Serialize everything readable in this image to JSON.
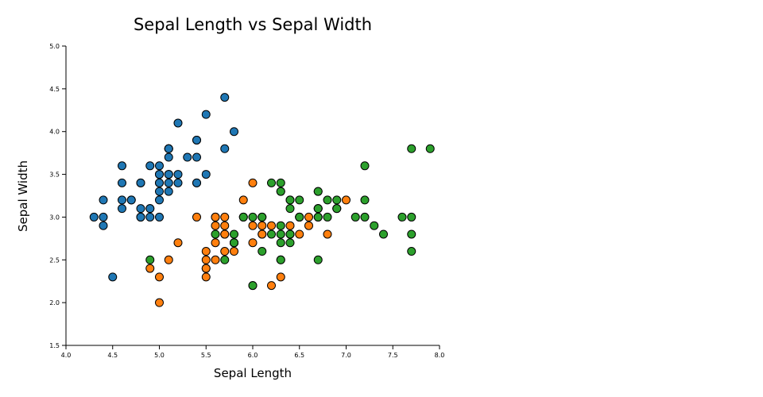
{
  "chart_data": {
    "type": "scatter",
    "title": "Sepal Length vs Sepal Width",
    "xlabel": "Sepal Length",
    "ylabel": "Sepal Width",
    "xlim": [
      4.0,
      8.0
    ],
    "ylim": [
      1.5,
      5.0
    ],
    "xticks": [
      "4.0",
      "4.5",
      "5.0",
      "5.5",
      "6.0",
      "6.5",
      "7.0",
      "7.5",
      "8.0"
    ],
    "yticks": [
      "1.5",
      "2.0",
      "2.5",
      "3.0",
      "3.5",
      "4.0",
      "4.5",
      "5.0"
    ],
    "grid": false,
    "legend": "none",
    "marker_stroke": "#000000",
    "series": [
      {
        "color": "#1f77b4",
        "points": [
          [
            5.1,
            3.5
          ],
          [
            4.9,
            3.0
          ],
          [
            4.7,
            3.2
          ],
          [
            4.6,
            3.1
          ],
          [
            5.0,
            3.6
          ],
          [
            5.4,
            3.9
          ],
          [
            4.6,
            3.4
          ],
          [
            5.0,
            3.4
          ],
          [
            4.4,
            2.9
          ],
          [
            4.9,
            3.1
          ],
          [
            5.4,
            3.7
          ],
          [
            4.8,
            3.4
          ],
          [
            4.8,
            3.0
          ],
          [
            4.3,
            3.0
          ],
          [
            5.8,
            4.0
          ],
          [
            5.7,
            4.4
          ],
          [
            5.4,
            3.9
          ],
          [
            5.1,
            3.5
          ],
          [
            5.7,
            3.8
          ],
          [
            5.1,
            3.8
          ],
          [
            5.4,
            3.4
          ],
          [
            5.1,
            3.7
          ],
          [
            4.6,
            3.6
          ],
          [
            5.1,
            3.3
          ],
          [
            4.8,
            3.4
          ],
          [
            5.0,
            3.0
          ],
          [
            5.0,
            3.4
          ],
          [
            5.2,
            3.5
          ],
          [
            5.2,
            3.4
          ],
          [
            4.7,
            3.2
          ],
          [
            4.8,
            3.1
          ],
          [
            5.4,
            3.4
          ],
          [
            5.2,
            4.1
          ],
          [
            5.5,
            4.2
          ],
          [
            4.9,
            3.1
          ],
          [
            5.0,
            3.2
          ],
          [
            5.5,
            3.5
          ],
          [
            4.9,
            3.6
          ],
          [
            4.4,
            3.0
          ],
          [
            5.1,
            3.4
          ],
          [
            5.0,
            3.5
          ],
          [
            4.5,
            2.3
          ],
          [
            4.4,
            3.2
          ],
          [
            5.0,
            3.5
          ],
          [
            5.1,
            3.8
          ],
          [
            4.8,
            3.0
          ],
          [
            5.1,
            3.8
          ],
          [
            4.6,
            3.2
          ],
          [
            5.3,
            3.7
          ],
          [
            5.0,
            3.3
          ]
        ]
      },
      {
        "color": "#ff7f0e",
        "points": [
          [
            7.0,
            3.2
          ],
          [
            6.4,
            3.2
          ],
          [
            6.9,
            3.1
          ],
          [
            5.5,
            2.3
          ],
          [
            6.5,
            2.8
          ],
          [
            5.7,
            2.8
          ],
          [
            6.3,
            3.3
          ],
          [
            4.9,
            2.4
          ],
          [
            6.6,
            2.9
          ],
          [
            5.2,
            2.7
          ],
          [
            5.0,
            2.0
          ],
          [
            5.9,
            3.0
          ],
          [
            6.0,
            2.2
          ],
          [
            6.1,
            2.9
          ],
          [
            5.6,
            2.9
          ],
          [
            6.7,
            3.1
          ],
          [
            5.6,
            3.0
          ],
          [
            5.8,
            2.7
          ],
          [
            6.2,
            2.2
          ],
          [
            5.6,
            2.5
          ],
          [
            5.9,
            3.2
          ],
          [
            6.1,
            2.8
          ],
          [
            6.3,
            2.5
          ],
          [
            6.1,
            2.8
          ],
          [
            6.4,
            2.9
          ],
          [
            6.6,
            3.0
          ],
          [
            6.8,
            2.8
          ],
          [
            6.7,
            3.0
          ],
          [
            6.0,
            2.9
          ],
          [
            5.7,
            2.6
          ],
          [
            5.5,
            2.4
          ],
          [
            5.5,
            2.4
          ],
          [
            5.8,
            2.7
          ],
          [
            6.0,
            2.7
          ],
          [
            5.4,
            3.0
          ],
          [
            6.0,
            3.4
          ],
          [
            6.7,
            3.1
          ],
          [
            6.3,
            2.3
          ],
          [
            5.6,
            3.0
          ],
          [
            5.5,
            2.5
          ],
          [
            5.5,
            2.6
          ],
          [
            6.1,
            3.0
          ],
          [
            5.8,
            2.6
          ],
          [
            5.0,
            2.3
          ],
          [
            5.6,
            2.7
          ],
          [
            5.7,
            3.0
          ],
          [
            5.7,
            2.9
          ],
          [
            6.2,
            2.9
          ],
          [
            5.1,
            2.5
          ],
          [
            5.7,
            2.8
          ]
        ]
      },
      {
        "color": "#2ca02c",
        "points": [
          [
            6.3,
            3.3
          ],
          [
            5.8,
            2.7
          ],
          [
            7.1,
            3.0
          ],
          [
            6.3,
            2.9
          ],
          [
            6.5,
            3.0
          ],
          [
            7.6,
            3.0
          ],
          [
            4.9,
            2.5
          ],
          [
            7.3,
            2.9
          ],
          [
            6.7,
            2.5
          ],
          [
            7.2,
            3.6
          ],
          [
            6.5,
            3.2
          ],
          [
            6.4,
            2.7
          ],
          [
            6.8,
            3.0
          ],
          [
            5.7,
            2.5
          ],
          [
            5.8,
            2.8
          ],
          [
            6.4,
            3.2
          ],
          [
            6.5,
            3.0
          ],
          [
            7.7,
            3.8
          ],
          [
            7.7,
            2.6
          ],
          [
            6.0,
            2.2
          ],
          [
            6.9,
            3.2
          ],
          [
            5.6,
            2.8
          ],
          [
            7.7,
            2.8
          ],
          [
            6.3,
            2.7
          ],
          [
            6.7,
            3.3
          ],
          [
            7.2,
            3.2
          ],
          [
            6.2,
            2.8
          ],
          [
            6.1,
            3.0
          ],
          [
            6.4,
            2.8
          ],
          [
            7.2,
            3.0
          ],
          [
            7.4,
            2.8
          ],
          [
            7.9,
            3.8
          ],
          [
            6.4,
            2.8
          ],
          [
            6.3,
            2.8
          ],
          [
            6.1,
            2.6
          ],
          [
            7.7,
            3.0
          ],
          [
            6.3,
            3.4
          ],
          [
            6.4,
            3.1
          ],
          [
            6.0,
            3.0
          ],
          [
            6.9,
            3.1
          ],
          [
            6.7,
            3.1
          ],
          [
            6.9,
            3.1
          ],
          [
            5.8,
            2.7
          ],
          [
            6.8,
            3.2
          ],
          [
            6.7,
            3.3
          ],
          [
            6.7,
            3.0
          ],
          [
            6.3,
            2.5
          ],
          [
            6.5,
            3.0
          ],
          [
            6.2,
            3.4
          ],
          [
            5.9,
            3.0
          ]
        ]
      }
    ]
  }
}
